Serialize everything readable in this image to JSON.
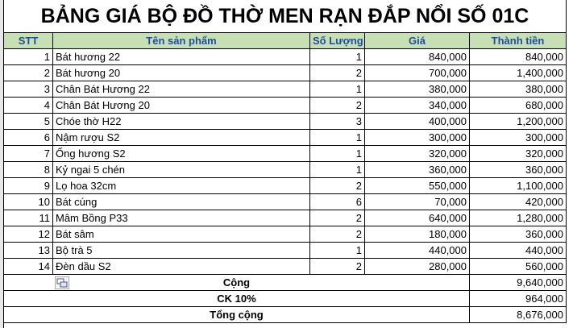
{
  "title": "BẢNG GIÁ BỘ ĐỒ THỜ MEN RẠN ĐẮP NỔI SỐ 01C",
  "table": {
    "header": [
      "STT",
      "Tên sản phẩm",
      "Số Lượng",
      "Giá",
      "Thành tiền"
    ],
    "rows": [
      [
        "1",
        "Bát hương 22",
        "1",
        "840,000",
        "840,000"
      ],
      [
        "2",
        "Bát hương 20",
        "2",
        "700,000",
        "1,400,000"
      ],
      [
        "3",
        "Chân Bát Hương 22",
        "1",
        "380,000",
        "380,000"
      ],
      [
        "4",
        "Chân Bát Hương 20",
        "2",
        "340,000",
        "680,000"
      ],
      [
        "5",
        "Chóe thờ H22",
        "3",
        "400,000",
        "1,200,000"
      ],
      [
        "6",
        "Nậm rượu S2",
        "1",
        "300,000",
        "300,000"
      ],
      [
        "7",
        "Ống hương S2",
        "1",
        "320,000",
        "320,000"
      ],
      [
        "8",
        "Kỷ ngai 5 chén",
        "1",
        "360,000",
        "360,000"
      ],
      [
        "9",
        "Lọ hoa 32cm",
        "2",
        "550,000",
        "1,100,000"
      ],
      [
        "10",
        "Bát cúng",
        "6",
        "70,000",
        "420,000"
      ],
      [
        "11",
        "Mâm Bồng P33",
        "2",
        "640,000",
        "1,280,000"
      ],
      [
        "12",
        "Bát sâm",
        "2",
        "180,000",
        "360,000"
      ],
      [
        "13",
        "Bộ trà 5",
        "1",
        "440,000",
        "440,000"
      ],
      [
        "14",
        "Đèn dầu S2",
        "2",
        "280,000",
        "560,000"
      ]
    ],
    "summary": [
      [
        "Cộng",
        "9,640,000"
      ],
      [
        "CK 10%",
        "964,000"
      ],
      [
        "Tổng cộng",
        "8,676,000"
      ]
    ]
  }
}
